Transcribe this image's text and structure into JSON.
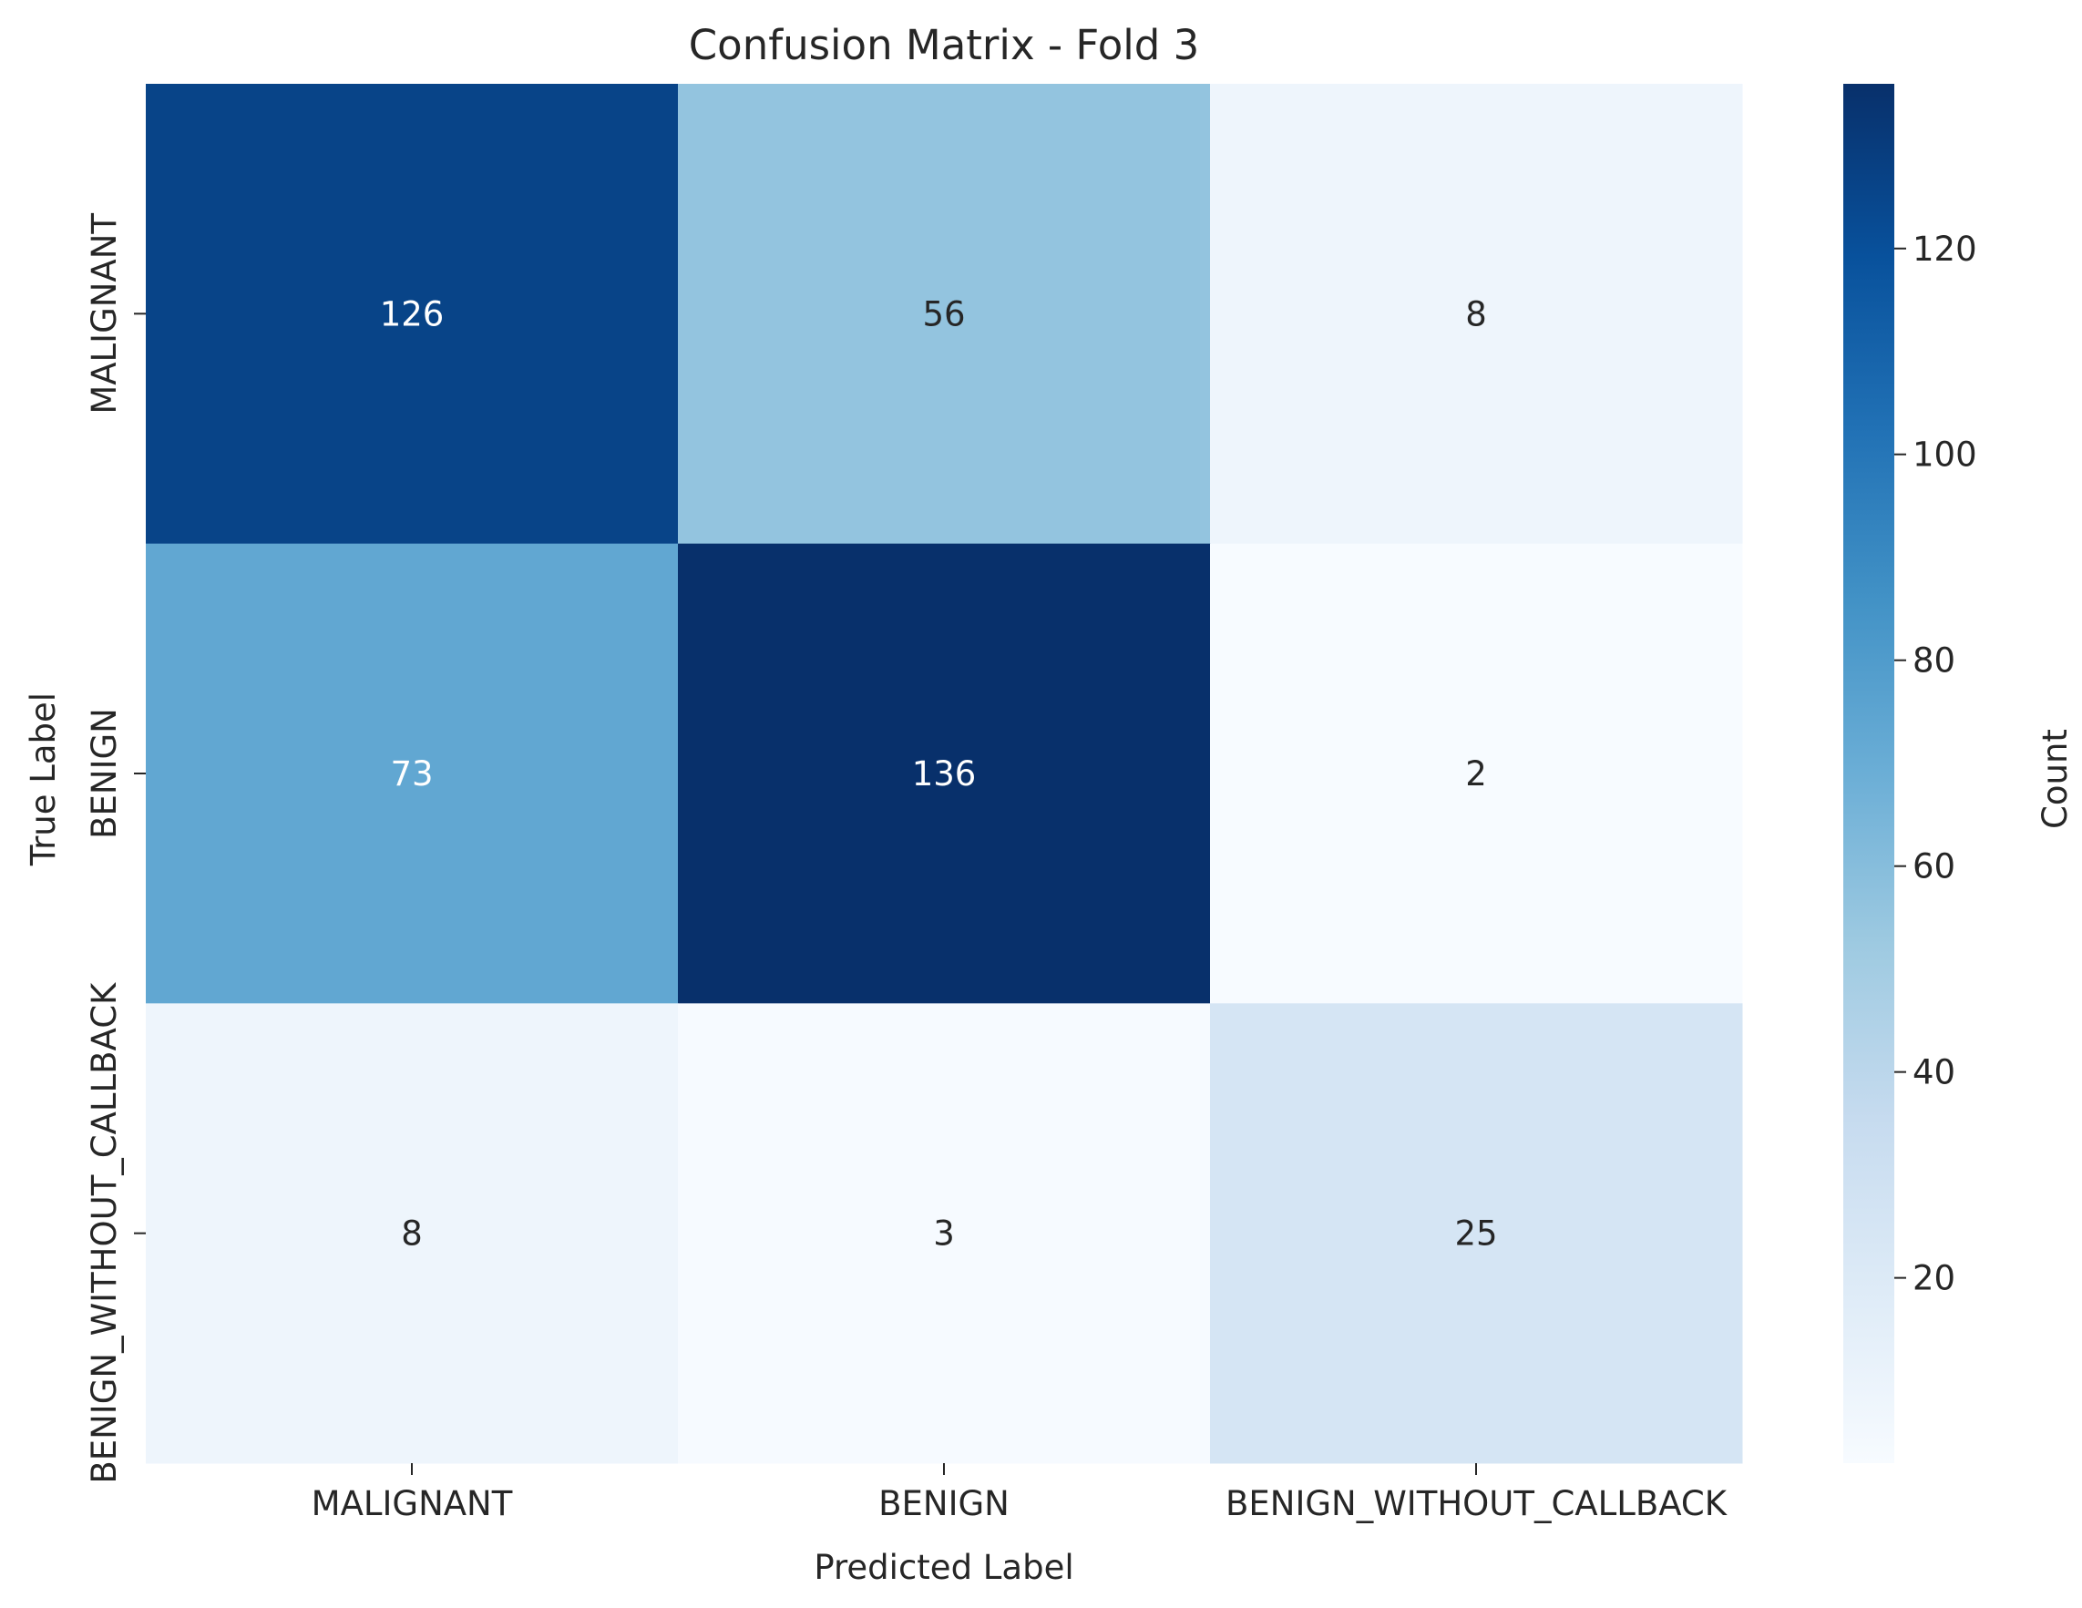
{
  "chart_data": {
    "type": "heatmap",
    "title": "Confusion Matrix - Fold 3",
    "xlabel": "Predicted Label",
    "ylabel": "True Label",
    "x_categories": [
      "MALIGNANT",
      "BENIGN",
      "BENIGN_WITHOUT_CALLBACK"
    ],
    "y_categories": [
      "MALIGNANT",
      "BENIGN",
      "BENIGN_WITHOUT_CALLBACK"
    ],
    "values": [
      [
        126,
        56,
        8
      ],
      [
        73,
        136,
        2
      ],
      [
        8,
        3,
        25
      ]
    ],
    "colormap": "Blues",
    "colorbar": {
      "label": "Count",
      "min": 2,
      "max": 136,
      "ticks": [
        20,
        40,
        60,
        80,
        100,
        120
      ]
    },
    "annotation_colors": {
      "light": "#ffffff",
      "dark": "#262626"
    },
    "colors": [
      "#f7fbff",
      "#deebf7",
      "#c6dbef",
      "#9ecae1",
      "#6baed6",
      "#4292c6",
      "#2171b5",
      "#08519c",
      "#08306b"
    ]
  }
}
